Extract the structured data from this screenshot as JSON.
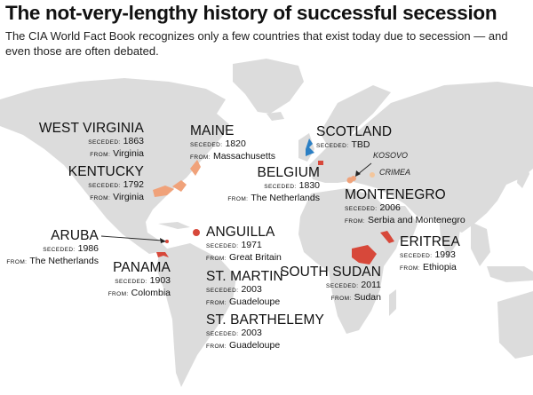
{
  "title": "The not-very-lengthy history of successful secession",
  "subtitle": "The CIA World Fact Book recognizes only a few countries that exist today due to secession — and even those are often debated.",
  "labels": {
    "seceded": "SECEDED:",
    "from": "FROM:"
  },
  "colors": {
    "ocean": "#ffffff",
    "land": "#dcdcdc",
    "accent_red": "#d7483a",
    "accent_orange": "#f0a27a",
    "accent_peach": "#f3c69c",
    "accent_blue": "#2b7fc4"
  },
  "secessions": [
    {
      "key": "west_virginia",
      "name": "WEST VIRGINIA",
      "seceded": "1863",
      "from": "Virginia"
    },
    {
      "key": "kentucky",
      "name": "KENTUCKY",
      "seceded": "1792",
      "from": "Virginia"
    },
    {
      "key": "maine",
      "name": "MAINE",
      "seceded": "1820",
      "from": "Massachusetts"
    },
    {
      "key": "scotland",
      "name": "SCOTLAND",
      "seceded": "TBD"
    },
    {
      "key": "belgium",
      "name": "BELGIUM",
      "seceded": "1830",
      "from": "The Netherlands"
    },
    {
      "key": "montenegro",
      "name": "MONTENEGRO",
      "seceded": "2006",
      "from": "Serbia and Montenegro"
    },
    {
      "key": "aruba",
      "name": "ARUBA",
      "seceded": "1986",
      "from": "The Netherlands"
    },
    {
      "key": "anguilla",
      "name": "ANGUILLA",
      "seceded": "1971",
      "from": "Great Britain"
    },
    {
      "key": "panama",
      "name": "PANAMA",
      "seceded": "1903",
      "from": "Colombia"
    },
    {
      "key": "st_martin",
      "name": "ST. MARTIN",
      "seceded": "2003",
      "from": "Guadeloupe"
    },
    {
      "key": "st_barthelemy",
      "name": "ST. BARTHELEMY",
      "seceded": "2003",
      "from": "Guadeloupe"
    },
    {
      "key": "south_sudan",
      "name": "SOUTH SUDAN",
      "seceded": "2011",
      "from": "Sudan"
    },
    {
      "key": "eritrea",
      "name": "ERITREA",
      "seceded": "1993",
      "from": "Ethiopia"
    }
  ],
  "annotations": {
    "kosovo": "KOSOVO",
    "crimea": "CRIMEA"
  }
}
